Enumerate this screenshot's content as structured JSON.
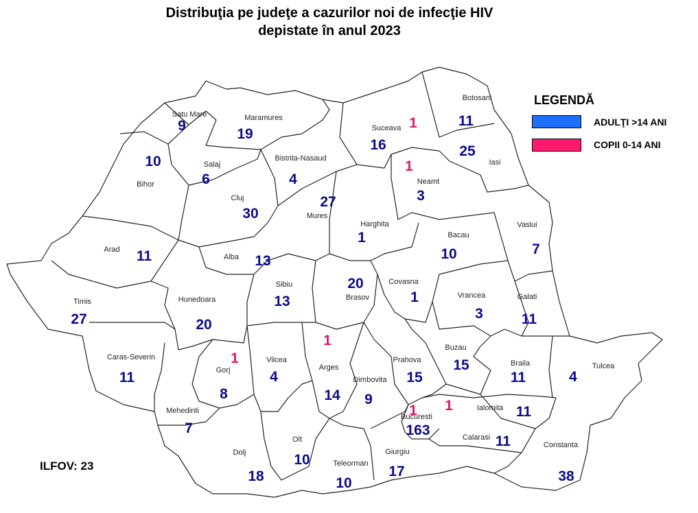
{
  "title": {
    "line1": "Distribuţia pe judeţe a cazurilor noi de infecţie HIV",
    "line2": "depistate în anul 2023"
  },
  "legend": {
    "title": "LEGENDĂ",
    "items": [
      {
        "label": "ADULŢI >14 ANI",
        "color": "#1E6FFF"
      },
      {
        "label": "COPII 0-14 ANI",
        "color": "#FF1A70"
      }
    ]
  },
  "colors": {
    "adult_text": "#0A0A8C",
    "child_text": "#E0166A",
    "county_name": "#222222",
    "border": "#222222"
  },
  "ilfov_label": "ILFOV:  23",
  "counties": [
    {
      "name": "Satu Mare",
      "adults": "9",
      "children": ""
    },
    {
      "name": "Maramures",
      "adults": "19",
      "children": ""
    },
    {
      "name": "Suceava",
      "adults": "16",
      "children": "1"
    },
    {
      "name": "Botosani",
      "adults": "11",
      "children": ""
    },
    {
      "name": "Iasi",
      "adults": "25",
      "children": ""
    },
    {
      "name": "Bihor",
      "adults": "10",
      "children": ""
    },
    {
      "name": "Salaj",
      "adults": "6",
      "children": ""
    },
    {
      "name": "Bistrita-Nasaud",
      "adults": "4",
      "children": ""
    },
    {
      "name": "Neamt",
      "adults": "3",
      "children": "1"
    },
    {
      "name": "Cluj",
      "adults": "30",
      "children": ""
    },
    {
      "name": "Mures",
      "adults": "27",
      "children": ""
    },
    {
      "name": "Harghita",
      "adults": "1",
      "children": ""
    },
    {
      "name": "Bacau",
      "adults": "10",
      "children": ""
    },
    {
      "name": "Vaslui",
      "adults": "7",
      "children": ""
    },
    {
      "name": "Arad",
      "adults": "11",
      "children": ""
    },
    {
      "name": "Alba",
      "adults": "13",
      "children": ""
    },
    {
      "name": "Sibiu",
      "adults": "13",
      "children": ""
    },
    {
      "name": "Brasov",
      "adults": "20",
      "children": ""
    },
    {
      "name": "Covasna",
      "adults": "1",
      "children": ""
    },
    {
      "name": "Vrancea",
      "adults": "3",
      "children": ""
    },
    {
      "name": "Galati",
      "adults": "11",
      "children": ""
    },
    {
      "name": "Timis",
      "adults": "27",
      "children": ""
    },
    {
      "name": "Hunedoara",
      "adults": "20",
      "children": ""
    },
    {
      "name": "Caras-Severin",
      "adults": "11",
      "children": ""
    },
    {
      "name": "Gorj",
      "adults": "8",
      "children": "1"
    },
    {
      "name": "Vilcea",
      "adults": "4",
      "children": ""
    },
    {
      "name": "Arges",
      "adults": "14",
      "children": "1"
    },
    {
      "name": "Dimbovita",
      "adults": "9",
      "children": ""
    },
    {
      "name": "Prahova",
      "adults": "15",
      "children": ""
    },
    {
      "name": "Buzau",
      "adults": "15",
      "children": ""
    },
    {
      "name": "Braila",
      "adults": "11",
      "children": ""
    },
    {
      "name": "Tulcea",
      "adults": "4",
      "children": ""
    },
    {
      "name": "Mehedinti",
      "adults": "7",
      "children": ""
    },
    {
      "name": "Dolj",
      "adults": "18",
      "children": ""
    },
    {
      "name": "Olt",
      "adults": "10",
      "children": ""
    },
    {
      "name": "Teleorman",
      "adults": "10",
      "children": ""
    },
    {
      "name": "Giurgiu",
      "adults": "17",
      "children": ""
    },
    {
      "name": "Bucuresti",
      "adults": "163",
      "children": "1"
    },
    {
      "name": "Ialomita",
      "adults": "11",
      "children": "1"
    },
    {
      "name": "Calarasi",
      "adults": "11",
      "children": ""
    },
    {
      "name": "Constanta",
      "adults": "38",
      "children": ""
    }
  ]
}
